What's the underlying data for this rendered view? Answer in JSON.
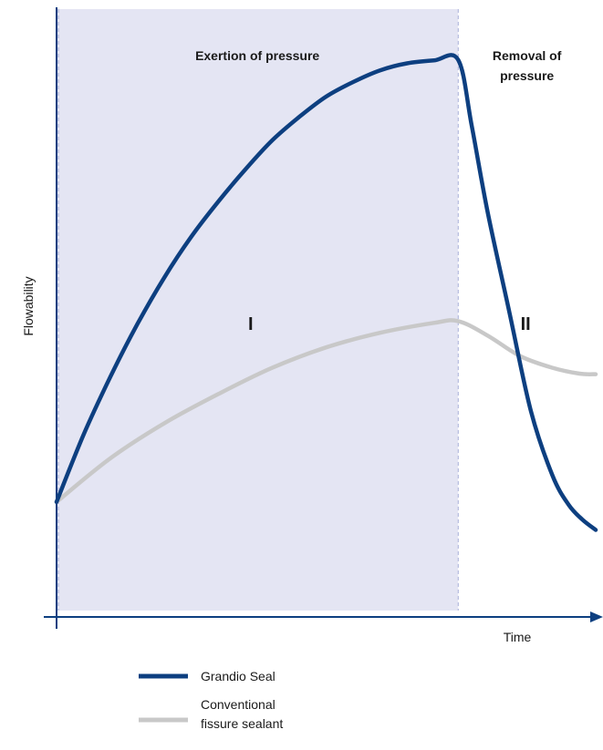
{
  "chart_data": {
    "type": "line",
    "xlabel": "Time",
    "ylabel": "Flowability",
    "xlim": [
      0,
      100
    ],
    "ylim": [
      0,
      100
    ],
    "phase_boundary_x": 74.5,
    "regions": [
      {
        "label_lines": [
          "Exertion of pressure"
        ],
        "x_start": 0,
        "x_end": 74.5,
        "fill": "#e4e5f3"
      },
      {
        "label_lines": [
          "Removal of",
          "pressure"
        ],
        "x_start": 74.5,
        "x_end": 100
      }
    ],
    "annotations": [
      {
        "text": "I",
        "x": 36,
        "y": 45
      },
      {
        "text": "II",
        "x": 87,
        "y": 45
      }
    ],
    "series": [
      {
        "name": "Grandio Seal",
        "color": "#0d3f80",
        "points": [
          [
            0,
            15.5
          ],
          [
            5,
            27
          ],
          [
            10,
            37
          ],
          [
            15,
            46
          ],
          [
            20,
            54
          ],
          [
            25,
            61
          ],
          [
            30,
            67
          ],
          [
            35,
            72.5
          ],
          [
            40,
            77.5
          ],
          [
            45,
            81.5
          ],
          [
            50,
            85
          ],
          [
            55,
            87.5
          ],
          [
            60,
            89.5
          ],
          [
            65,
            90.7
          ],
          [
            70,
            91.2
          ],
          [
            74.5,
            91.3
          ],
          [
            77,
            80
          ],
          [
            80,
            65
          ],
          [
            84,
            48
          ],
          [
            88,
            31
          ],
          [
            92,
            20
          ],
          [
            95,
            15
          ],
          [
            97.5,
            12.5
          ],
          [
            100,
            10.7
          ]
        ]
      },
      {
        "name": "Conventional\nfissure sealant",
        "color": "#c8c8c8",
        "points": [
          [
            0,
            15.5
          ],
          [
            10,
            23
          ],
          [
            20,
            29
          ],
          [
            30,
            34
          ],
          [
            40,
            38.5
          ],
          [
            50,
            42
          ],
          [
            60,
            44.5
          ],
          [
            70,
            46.2
          ],
          [
            74.5,
            46.5
          ],
          [
            80,
            44
          ],
          [
            86,
            40.5
          ],
          [
            92,
            38.5
          ],
          [
            97,
            37.5
          ],
          [
            100,
            37.4
          ]
        ]
      }
    ],
    "grid": false,
    "legend_position": "bottom-left"
  }
}
